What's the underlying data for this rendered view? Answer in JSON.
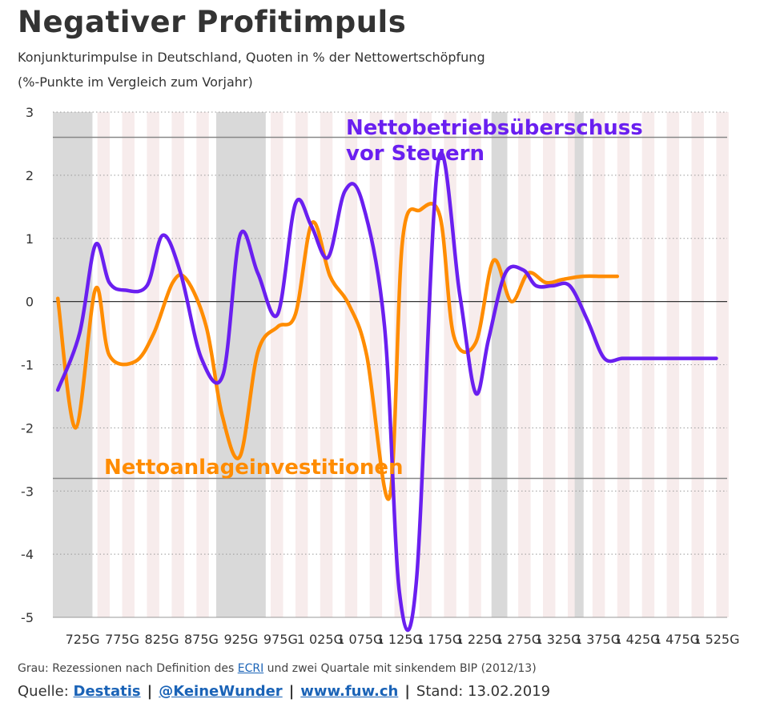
{
  "title": "Negativer Profitimpuls",
  "subtitle": "Konjunkturimpulse in Deutschland, Quoten in % der Nettowertschöpfung",
  "subtitle2": "(%-Punkte im Vergleich zum Vorjahr)",
  "colors": {
    "betrieb": "#6a1ff0",
    "anlage": "#ff8c00",
    "recession": "#d9d9d9",
    "stripe": "#f7ecec",
    "refline": "#888888",
    "grid": "#999999"
  },
  "chart_data": {
    "type": "line",
    "x_tick_labels": [
      "725G",
      "775G",
      "825G",
      "875G",
      "925G",
      "975G",
      "1 025G",
      "1 075G",
      "1 125G",
      "1 175G",
      "1 225G",
      "1 275G",
      "1 325G",
      "1 375G",
      "1 425G",
      "1 475G",
      "1 525G"
    ],
    "y_ticks": [
      3,
      2,
      1,
      0,
      -1,
      -2,
      -3,
      -4,
      -5
    ],
    "ylim": [
      -5,
      3
    ],
    "grid": "dotted horizontal",
    "reference_lines": [
      2.6,
      -2.8
    ],
    "recession_bands": [
      [
        695,
        735
      ],
      [
        860,
        910
      ],
      [
        1138,
        1154
      ],
      [
        1222,
        1231
      ]
    ],
    "series": [
      {
        "name": "Nettobetriebsüberschuss vor Steuern",
        "color": "#6a1ff0",
        "x": [
          700,
          722,
          738,
          752,
          768,
          790,
          806,
          824,
          845,
          867,
          884,
          902,
          922,
          940,
          956,
          973,
          990,
          1007,
          1030,
          1045,
          1062,
          1084,
          1106,
          1122,
          1135,
          1152,
          1170,
          1183,
          1200,
          1217,
          1235,
          1252,
          1270,
          1285,
          1295,
          1315,
          1335,
          1352,
          1365
        ],
        "y": [
          -1.4,
          -0.5,
          0.9,
          0.3,
          0.18,
          0.25,
          1.05,
          0.45,
          -0.9,
          -1.15,
          1.05,
          0.45,
          -0.2,
          1.55,
          1.2,
          0.7,
          1.75,
          1.6,
          -0.4,
          -4.6,
          -4.45,
          2.2,
          0.1,
          -1.45,
          -0.6,
          0.45,
          0.5,
          0.25,
          0.25,
          0.25,
          -0.3,
          -0.9,
          -0.9,
          -0.9,
          -0.9,
          -0.9,
          -0.9,
          -0.9,
          -0.9
        ]
      },
      {
        "name": "Nettoanlageinvestitionen",
        "color": "#ff8c00",
        "x": [
          700,
          718,
          738,
          752,
          778,
          797,
          816,
          830,
          850,
          866,
          884,
          902,
          922,
          940,
          957,
          975,
          994,
          1012,
          1035,
          1048,
          1066,
          1086,
          1100,
          1122,
          1140,
          1158,
          1175,
          1193,
          1210,
          1230,
          1250,
          1265
        ],
        "y": [
          0.05,
          -2.0,
          0.2,
          -0.85,
          -0.95,
          -0.5,
          0.3,
          0.35,
          -0.4,
          -1.8,
          -2.45,
          -0.8,
          -0.4,
          -0.2,
          1.25,
          0.4,
          -0.05,
          -0.85,
          -3.1,
          0.95,
          1.45,
          1.35,
          -0.55,
          -0.65,
          0.65,
          0.0,
          0.45,
          0.3,
          0.35,
          0.4,
          0.4,
          0.4
        ]
      }
    ],
    "annotations": [
      {
        "text": "Nettobetriebsüberschuss",
        "series": "Nettobetriebsüberschuss vor Steuern"
      },
      {
        "text": "vor Steuern",
        "series": "Nettobetriebsüberschuss vor Steuern"
      },
      {
        "text": "Nettoanlageinvestitionen",
        "series": "Nettoanlageinvestitionen"
      }
    ]
  },
  "footnote": {
    "prefix": "Grau: Rezessionen nach Definition des ",
    "link": "ECRI",
    "suffix": " und zwei Quartale mit sinkendem BIP (2012/13)"
  },
  "source": {
    "label": "Quelle: ",
    "link1": "Destatis",
    "sep": "|",
    "link2": "@KeineWunder",
    "link3": "www.fuw.ch",
    "stand": "Stand: 13.02.2019"
  }
}
